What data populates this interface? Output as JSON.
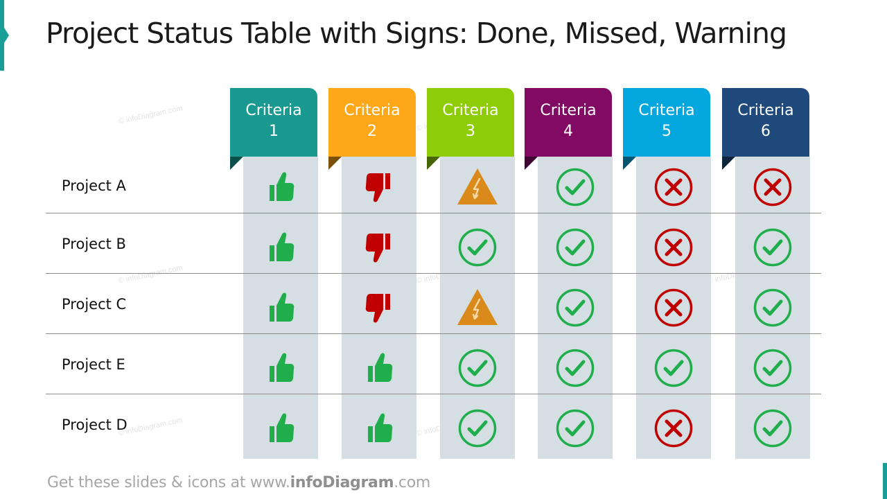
{
  "slide": {
    "title": "Project Status Table with Signs: Done, Missed, Warning",
    "watermark_text": "© infoDiagram.com"
  },
  "footer": {
    "prefix": "Get these slides & icons at www.",
    "brand": "infoDiagram",
    "suffix": ".com"
  },
  "colors": {
    "done_green": "#1fae4b",
    "missed_red": "#c00000",
    "warning_orange": "#d98a1a",
    "column_bg": "#d5dee2"
  },
  "columns": [
    {
      "label": "Criteria 1",
      "line1": "Criteria",
      "line2": "1",
      "color": "#1a9990",
      "fold": "#0d4f4a"
    },
    {
      "label": "Criteria 2",
      "line1": "Criteria",
      "line2": "2",
      "color": "#fea719",
      "fold": "#7a500b"
    },
    {
      "label": "Criteria 3",
      "line1": "Criteria",
      "line2": "3",
      "color": "#8dcc07",
      "fold": "#466604"
    },
    {
      "label": "Criteria 4",
      "line1": "Criteria",
      "line2": "4",
      "color": "#810a63",
      "fold": "#400532"
    },
    {
      "label": "Criteria 5",
      "line1": "Criteria",
      "line2": "5",
      "color": "#04a6de",
      "fold": "#025470"
    },
    {
      "label": "Criteria 6",
      "line1": "Criteria",
      "line2": "6",
      "color": "#1f4a7b",
      "fold": "#0f253d"
    }
  ],
  "rows": [
    {
      "project": "Project A",
      "cells": [
        "thumbs-up-icon",
        "thumbs-down-icon",
        "warning-icon",
        "check-circle-icon",
        "x-circle-icon",
        "x-circle-icon"
      ]
    },
    {
      "project": "Project B",
      "cells": [
        "thumbs-up-icon",
        "thumbs-down-icon",
        "check-circle-icon",
        "check-circle-icon",
        "x-circle-icon",
        "check-circle-icon"
      ]
    },
    {
      "project": "Project C",
      "cells": [
        "thumbs-up-icon",
        "thumbs-down-icon",
        "warning-icon",
        "check-circle-icon",
        "x-circle-icon",
        "check-circle-icon"
      ]
    },
    {
      "project": "Project E",
      "cells": [
        "thumbs-up-icon",
        "thumbs-up-icon",
        "check-circle-icon",
        "check-circle-icon",
        "check-circle-icon",
        "check-circle-icon"
      ]
    },
    {
      "project": "Project D",
      "cells": [
        "thumbs-up-icon",
        "thumbs-up-icon",
        "check-circle-icon",
        "check-circle-icon",
        "x-circle-icon",
        "check-circle-icon"
      ]
    }
  ]
}
